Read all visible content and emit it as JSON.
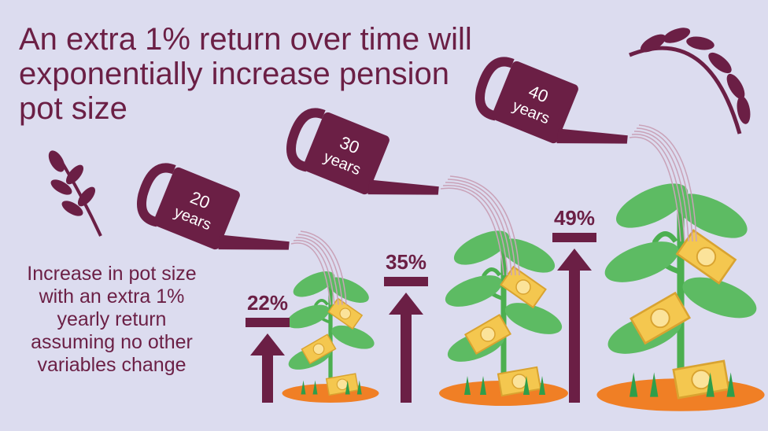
{
  "title": "An extra 1% return over time will exponentially increase pension pot size",
  "caption": "Increase in pot size with an extra 1% yearly return assuming no other variables change",
  "cans": [
    {
      "number": "20",
      "unit": "years"
    },
    {
      "number": "30",
      "unit": "years"
    },
    {
      "number": "40",
      "unit": "years"
    }
  ],
  "increase": {
    "values": [
      22,
      35,
      49
    ],
    "value_labels": [
      "22%",
      "35%",
      "49%"
    ]
  }
}
